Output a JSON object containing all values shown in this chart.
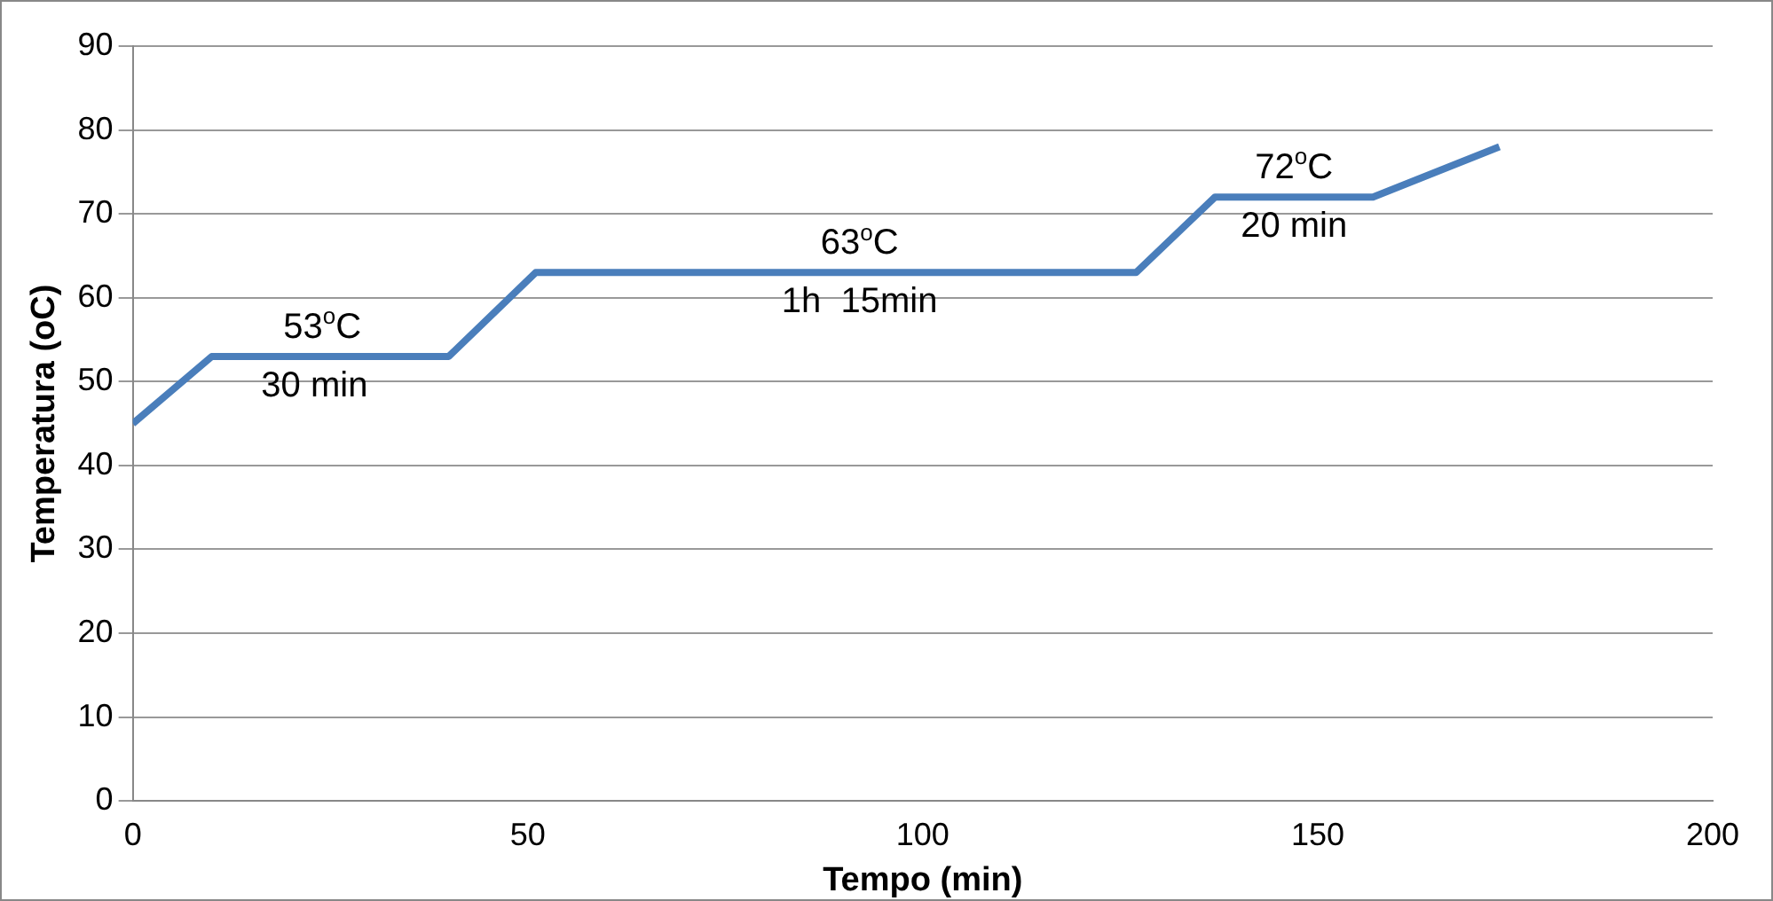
{
  "chart_data": {
    "type": "line",
    "xlabel": "Tempo (min)",
    "ylabel": "Temperatura (oC)",
    "x": [
      0,
      10,
      40,
      51,
      127,
      137,
      157,
      173
    ],
    "series": [
      {
        "color": "#4a7ebb",
        "values": [
          45,
          53,
          53,
          63,
          63,
          72,
          72,
          78
        ]
      }
    ],
    "xlim": [
      0,
      200
    ],
    "xticks": [
      0,
      50,
      100,
      150,
      200
    ],
    "ylim": [
      0,
      90
    ],
    "yticks": [
      0,
      10,
      20,
      30,
      40,
      50,
      60,
      70,
      80,
      90
    ],
    "grid": "y",
    "legend": false,
    "marker": "none",
    "line_style": "solid",
    "annotations": [
      {
        "text": "53$^{o}$C",
        "x": 24,
        "y": 53
      },
      {
        "text": "30 min",
        "x": 23,
        "y": 53
      },
      {
        "text": "63$^{o}$C",
        "x": 92,
        "y": 63
      },
      {
        "text": "1h  15min",
        "x": 92,
        "y": 63
      },
      {
        "text": "72$^{o}$C",
        "x": 147,
        "y": 72
      },
      {
        "text": "20 min",
        "x": 147,
        "y": 72
      }
    ]
  }
}
